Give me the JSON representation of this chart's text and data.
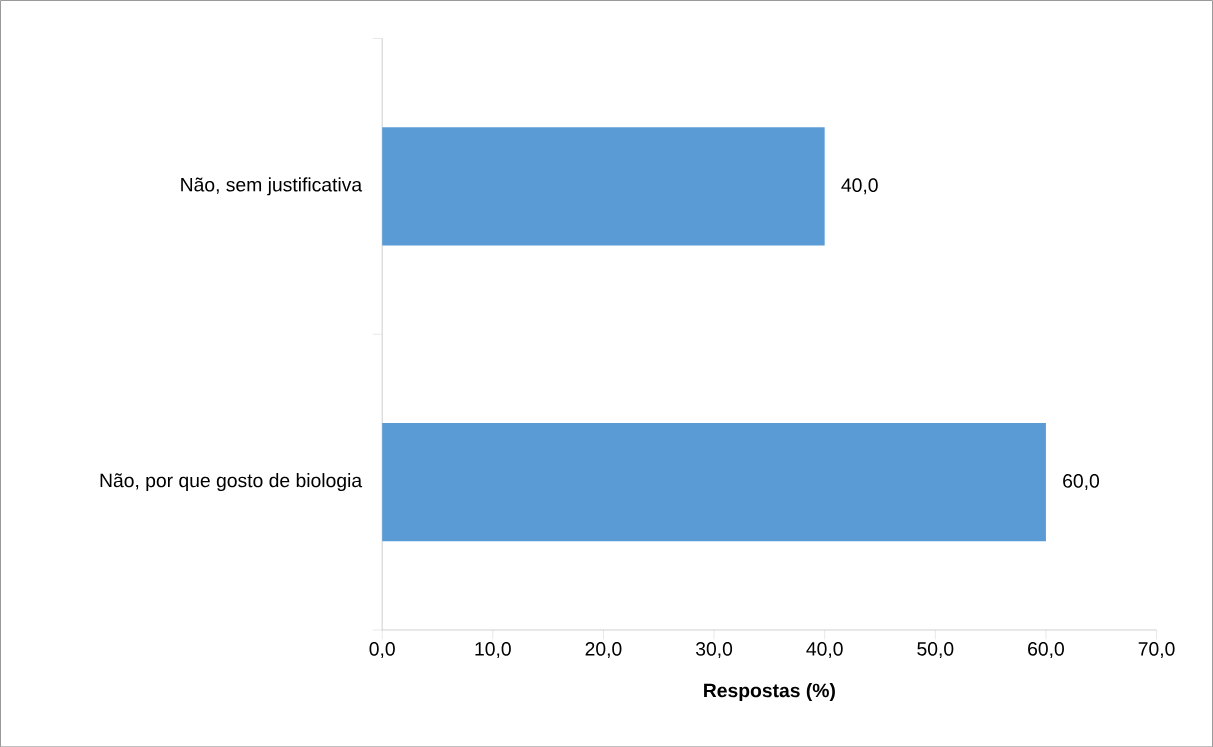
{
  "chart_data": {
    "type": "bar",
    "orientation": "horizontal",
    "categories": [
      "Não, sem justificativa",
      "Não, por que gosto de biologia"
    ],
    "values": [
      40,
      60
    ],
    "value_labels": [
      "40,0",
      "60,0"
    ],
    "color": "#5b9bd5",
    "xlabel": "Respostas (%)",
    "xlim": [
      0,
      70
    ],
    "xticks": [
      {
        "value": 0,
        "label": "0,0"
      },
      {
        "value": 10,
        "label": "10,0"
      },
      {
        "value": 20,
        "label": "20,0"
      },
      {
        "value": 30,
        "label": "30,0"
      },
      {
        "value": 40,
        "label": "40,0"
      },
      {
        "value": 50,
        "label": "50,0"
      },
      {
        "value": 60,
        "label": "60,0"
      },
      {
        "value": 70,
        "label": "70,0"
      }
    ],
    "grid": false
  }
}
